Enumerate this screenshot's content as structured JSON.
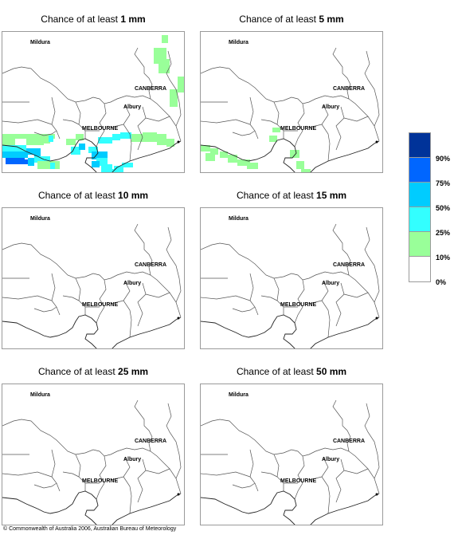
{
  "panels": [
    {
      "prefix": "Chance of at least ",
      "amount": "1 mm",
      "shading": "heavy"
    },
    {
      "prefix": "Chance of at least ",
      "amount": "5 mm",
      "shading": "light"
    },
    {
      "prefix": "Chance of at least ",
      "amount": "10 mm",
      "shading": "none"
    },
    {
      "prefix": "Chance of at least ",
      "amount": "15 mm",
      "shading": "none"
    },
    {
      "prefix": "Chance of at least ",
      "amount": "25 mm",
      "shading": "none"
    },
    {
      "prefix": "Chance of at least ",
      "amount": "50 mm",
      "shading": "none"
    }
  ],
  "map_labels": {
    "mildura": "Mildura",
    "canberra": "CANBERRA",
    "albury": "Albury",
    "melbourne": "MELBOURNE"
  },
  "legend": {
    "colors": [
      "#003399",
      "#0066ff",
      "#00ccff",
      "#33ffff",
      "#99ff99",
      "#ffffff"
    ],
    "ticks": [
      "90%",
      "75%",
      "50%",
      "25%",
      "10%",
      "0%"
    ]
  },
  "copyright": "© Commonwealth of Australia 2006, Australian Bureau of Meteorology"
}
